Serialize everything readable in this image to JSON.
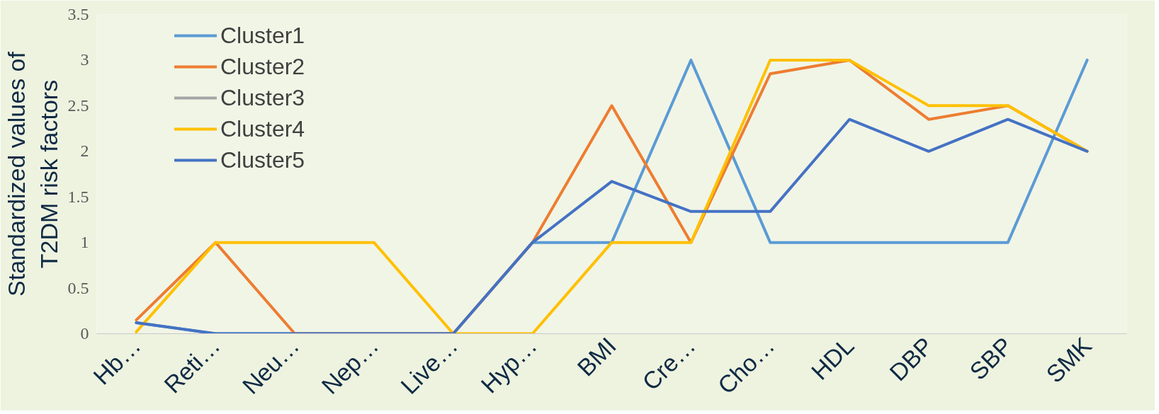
{
  "chart_data": {
    "type": "line",
    "ylabel": "Standardized values of\nT2DM risk factors",
    "categories": [
      "Hb…",
      "Reti…",
      "Neu…",
      "Nep…",
      "Live…",
      "Hyp…",
      "BMI",
      "Cre…",
      "Cho…",
      "HDL",
      "DBP",
      "SBP",
      "SMK"
    ],
    "series": [
      {
        "name": "Cluster1",
        "color": "#5b9bd5",
        "values": [
          0.12,
          0,
          0,
          0,
          0,
          1,
          1,
          3,
          1,
          1,
          1,
          1,
          3
        ]
      },
      {
        "name": "Cluster2",
        "color": "#ed7d31",
        "values": [
          0.15,
          1,
          0,
          0,
          0,
          1,
          2.5,
          1,
          2.85,
          3,
          2.35,
          2.5,
          2
        ]
      },
      {
        "name": "Cluster3",
        "color": "#a5a5a5",
        "values": [
          null,
          null,
          null,
          null,
          null,
          null,
          null,
          null,
          null,
          null,
          null,
          null,
          null
        ]
      },
      {
        "name": "Cluster4",
        "color": "#ffc000",
        "values": [
          0.02,
          1,
          1,
          1,
          0,
          0,
          1,
          1,
          3,
          3,
          2.5,
          2.5,
          2
        ]
      },
      {
        "name": "Cluster5",
        "color": "#4472c4",
        "values": [
          0.12,
          0,
          0,
          0,
          0,
          1,
          1.67,
          1.34,
          1.34,
          2.35,
          2,
          2.35,
          2
        ]
      }
    ],
    "ylim": [
      0,
      3.5
    ],
    "yticks": [
      0,
      0.5,
      1,
      1.5,
      2,
      2.5,
      3,
      3.5
    ],
    "grid": false,
    "legend": "top left",
    "marker": "none",
    "line_style": "solid"
  }
}
